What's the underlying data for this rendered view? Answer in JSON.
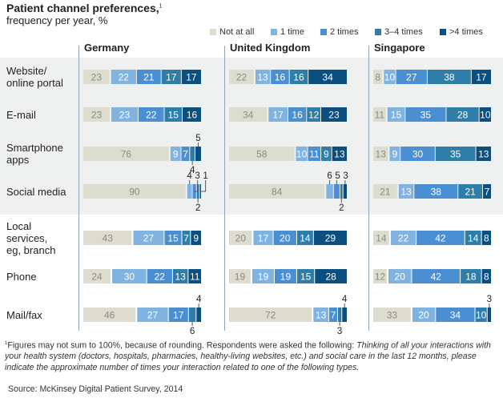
{
  "chart_data": {
    "type": "bar",
    "orientation": "horizontal-stacked",
    "title": "Patient channel preferences,",
    "title_footnote_marker": "1",
    "subtitle": "frequency per year, %",
    "legend": [
      "Not at all",
      "1 time",
      "2 times",
      "3–4 times",
      ">4 times"
    ],
    "legend_placement": "top-right",
    "colors": [
      "#ddddcf",
      "#80b3e0",
      "#4a8fd2",
      "#2e7ea8",
      "#0b4e80"
    ],
    "panels": [
      "Germany",
      "United Kingdom",
      "Singapore"
    ],
    "categories": [
      "Website/\nonline portal",
      "E-mail",
      "Smartphone\napps",
      "Social media",
      "Local\nservices,\neg, branch",
      "Phone",
      "Mail/fax"
    ],
    "values": {
      "Germany": [
        [
          23,
          22,
          21,
          17,
          17
        ],
        [
          23,
          23,
          22,
          15,
          16
        ],
        [
          76,
          9,
          7,
          4,
          5
        ],
        [
          90,
          4,
          3,
          2,
          1
        ],
        [
          43,
          27,
          15,
          7,
          9
        ],
        [
          24,
          30,
          22,
          13,
          11
        ],
        [
          46,
          27,
          17,
          6,
          4
        ]
      ],
      "United Kingdom": [
        [
          22,
          13,
          16,
          16,
          34
        ],
        [
          34,
          17,
          16,
          12,
          23
        ],
        [
          58,
          10,
          11,
          9,
          13
        ],
        [
          84,
          6,
          5,
          2,
          3
        ],
        [
          20,
          17,
          20,
          14,
          29
        ],
        [
          19,
          19,
          19,
          15,
          28
        ],
        [
          72,
          13,
          7,
          3,
          4
        ]
      ],
      "Singapore": [
        [
          8,
          10,
          27,
          38,
          17
        ],
        [
          11,
          15,
          35,
          28,
          10
        ],
        [
          13,
          9,
          30,
          35,
          13
        ],
        [
          21,
          13,
          38,
          21,
          7
        ],
        [
          14,
          22,
          42,
          14,
          8
        ],
        [
          12,
          20,
          42,
          18,
          8
        ],
        [
          33,
          20,
          34,
          10,
          3
        ]
      ]
    },
    "unit": "%"
  },
  "footnote": {
    "marker": "1",
    "plain": "Figures may not sum to 100%, because of rounding. Respondents were asked the following: ",
    "italic": "Thinking of all your interactions with your health system (doctors, hospitals, pharmacies, healthy-living websites, etc.) and social care in the last 12 months, please indicate the approximate number of times your interaction related to one of the following types."
  },
  "source": "Source: McKinsey Digital Patient Survey, 2014"
}
